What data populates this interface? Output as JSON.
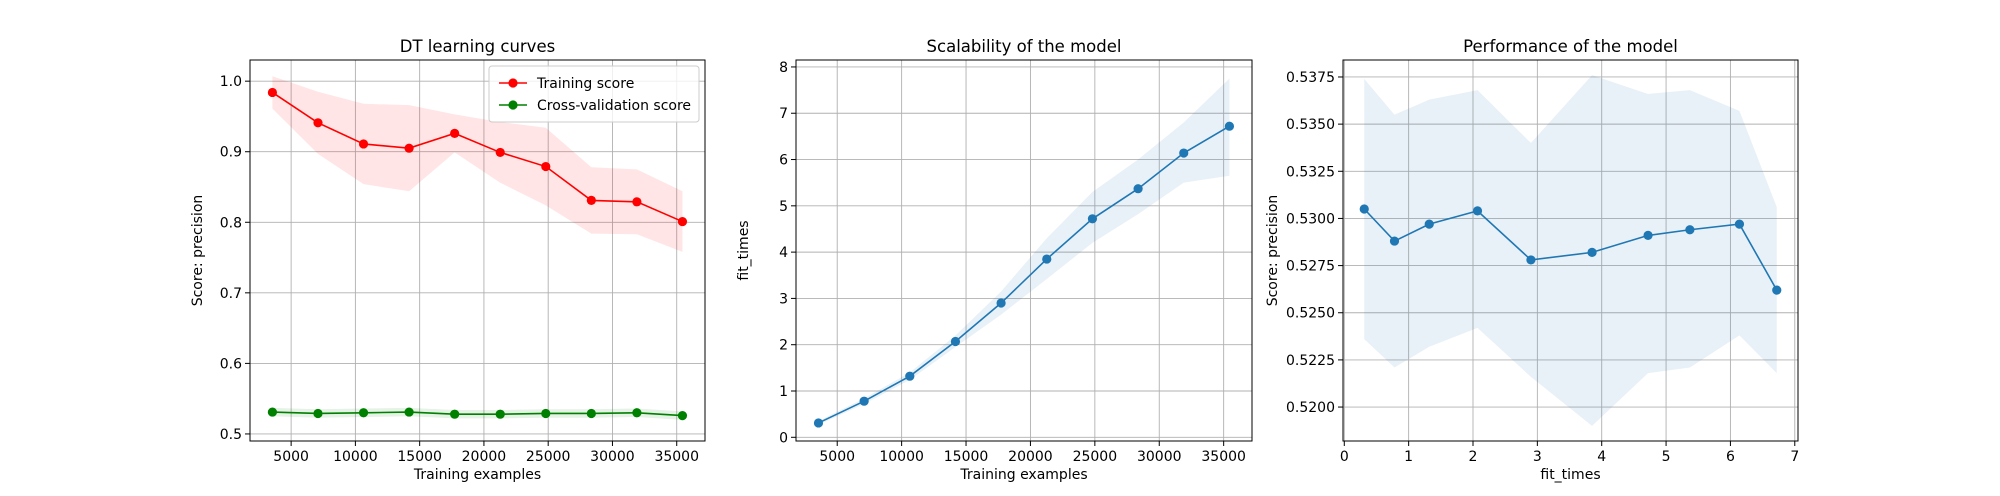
{
  "chart_data": [
    {
      "type": "line",
      "title": "DT learning curves",
      "xlabel": "Training examples",
      "ylabel": "Score: precision",
      "xlim": [
        1800,
        37200
      ],
      "ylim": [
        0.49,
        1.03
      ],
      "xticks": [
        5000,
        10000,
        15000,
        20000,
        25000,
        30000,
        35000
      ],
      "yticks": [
        0.5,
        0.6,
        0.7,
        0.8,
        0.9,
        1.0
      ],
      "ytick_decimals": 1,
      "grid": true,
      "legend": "top-right",
      "x": [
        3544,
        7089,
        10634,
        14178,
        17722,
        21268,
        24812,
        28357,
        31901,
        35446
      ],
      "series": [
        {
          "name": "Training score",
          "color": "#ff0000",
          "fill": "#ff0000",
          "values": [
            0.984,
            0.941,
            0.911,
            0.905,
            0.926,
            0.899,
            0.879,
            0.831,
            0.829,
            0.801
          ],
          "upper": [
            1.007,
            0.985,
            0.968,
            0.966,
            0.953,
            0.942,
            0.934,
            0.878,
            0.875,
            0.844
          ],
          "lower": [
            0.961,
            0.897,
            0.854,
            0.844,
            0.899,
            0.856,
            0.824,
            0.784,
            0.783,
            0.758
          ]
        },
        {
          "name": "Cross-validation score",
          "color": "#008000",
          "fill": "#008000",
          "values": [
            0.531,
            0.529,
            0.53,
            0.531,
            0.528,
            0.528,
            0.529,
            0.529,
            0.53,
            0.526
          ],
          "upper": [
            0.537,
            0.535,
            0.536,
            0.537,
            0.534,
            0.534,
            0.535,
            0.535,
            0.536,
            0.532
          ],
          "lower": [
            0.525,
            0.523,
            0.524,
            0.525,
            0.522,
            0.522,
            0.523,
            0.523,
            0.524,
            0.52
          ]
        }
      ]
    },
    {
      "type": "line",
      "title": "Scalability of the model",
      "xlabel": "Training examples",
      "ylabel": "fit_times",
      "xlim": [
        1800,
        37200
      ],
      "ylim": [
        -0.08,
        8.15
      ],
      "xticks": [
        5000,
        10000,
        15000,
        20000,
        25000,
        30000,
        35000
      ],
      "yticks": [
        0,
        1,
        2,
        3,
        4,
        5,
        6,
        7,
        8
      ],
      "ytick_decimals": 0,
      "grid": true,
      "x": [
        3544,
        7089,
        10634,
        14178,
        17722,
        21268,
        24812,
        28357,
        31901,
        35446
      ],
      "series": [
        {
          "color": "#1f77b4",
          "fill": "#1f77b4",
          "values": [
            0.31,
            0.78,
            1.32,
            2.07,
            2.9,
            3.85,
            4.72,
            5.37,
            6.14,
            6.72
          ],
          "upper": [
            0.35,
            0.84,
            1.4,
            2.2,
            3.15,
            4.3,
            5.3,
            6.0,
            6.8,
            7.75
          ],
          "lower": [
            0.27,
            0.72,
            1.24,
            1.95,
            2.65,
            3.42,
            4.2,
            4.82,
            5.5,
            5.65
          ]
        }
      ]
    },
    {
      "type": "line",
      "title": "Performance of the model",
      "xlabel": "fit_times",
      "ylabel": "Score: precision",
      "xlim": [
        -0.02,
        7.05
      ],
      "ylim": [
        0.5182,
        0.5384
      ],
      "xticks": [
        0,
        1,
        2,
        3,
        4,
        5,
        6,
        7
      ],
      "yticks": [
        0.52,
        0.5225,
        0.525,
        0.5275,
        0.53,
        0.5325,
        0.535,
        0.5375
      ],
      "ytick_decimals": 4,
      "grid": true,
      "x": [
        0.31,
        0.78,
        1.32,
        2.07,
        2.9,
        3.85,
        4.72,
        5.37,
        6.14,
        6.72
      ],
      "series": [
        {
          "color": "#1f77b4",
          "fill": "#1f77b4",
          "values": [
            0.5305,
            0.5288,
            0.5297,
            0.5304,
            0.5278,
            0.5282,
            0.5291,
            0.5294,
            0.5297,
            0.5262
          ],
          "upper": [
            0.5374,
            0.5355,
            0.5363,
            0.5368,
            0.534,
            0.5376,
            0.5366,
            0.5368,
            0.5357,
            0.5306
          ],
          "lower": [
            0.5236,
            0.5221,
            0.5232,
            0.5242,
            0.5216,
            0.519,
            0.5218,
            0.5221,
            0.5238,
            0.5218
          ]
        }
      ]
    }
  ]
}
